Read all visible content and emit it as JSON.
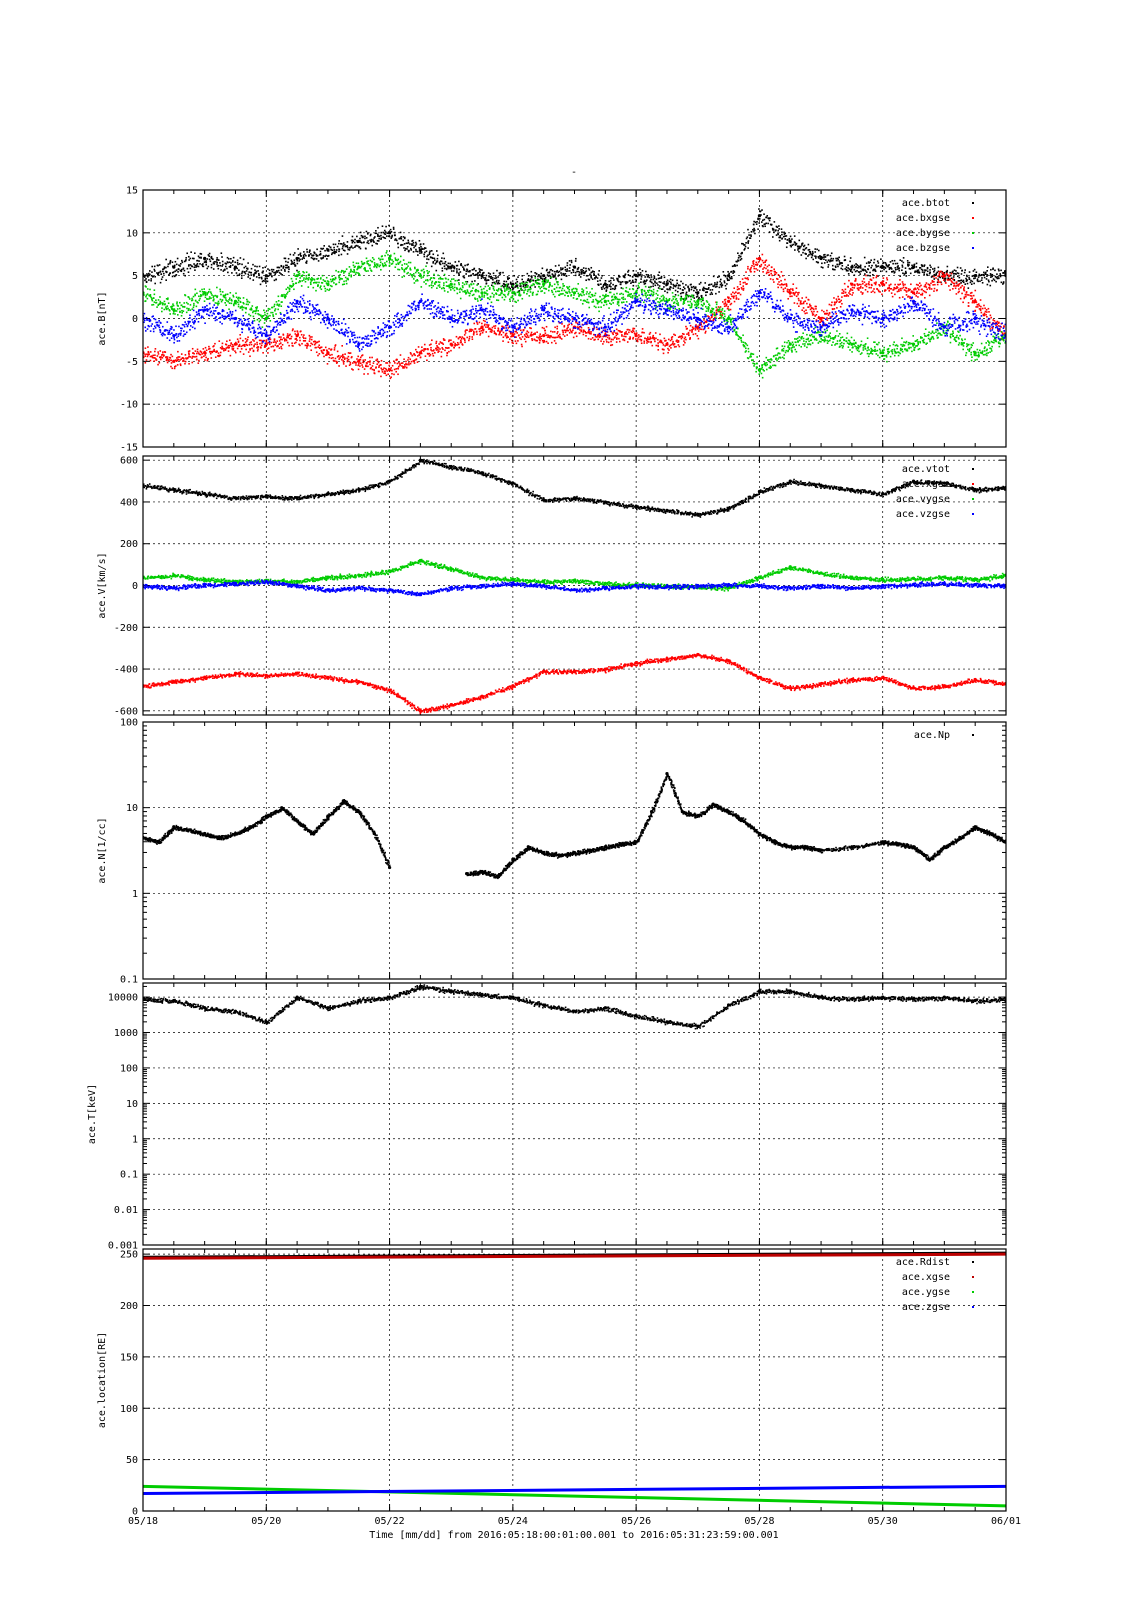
{
  "page": {
    "top_mark": "-",
    "footer": "Time [mm/dd]  from 2016:05:18:00:01:00.001  to  2016:05:31:23:59:00.001"
  },
  "chart_data": [
    {
      "type": "scatter",
      "ylabel": "ace.B[nT]",
      "yscale": "linear",
      "ylim": [
        -15,
        15
      ],
      "yticks": [
        -15,
        -10,
        -5,
        0,
        5,
        10,
        15
      ],
      "legend_position": "top-right",
      "series": [
        {
          "name": "ace.btot",
          "color": "#000000",
          "t": [
            0,
            0.5,
            1,
            1.5,
            2,
            2.5,
            3,
            3.5,
            4,
            4.5,
            5,
            5.5,
            6,
            6.5,
            7,
            7.5,
            8,
            8.5,
            9,
            9.5,
            10,
            10.5,
            11,
            11.5,
            12,
            12.5,
            13,
            13.5,
            14
          ],
          "values": [
            5,
            6,
            7,
            6,
            5,
            7,
            8,
            9,
            10,
            8,
            6,
            5,
            4,
            5,
            6,
            4,
            5,
            4,
            3,
            5,
            12,
            9,
            7,
            6,
            6,
            6,
            5,
            5,
            5
          ]
        },
        {
          "name": "ace.bxgse",
          "color": "#ff0000",
          "t": [
            0,
            0.5,
            1,
            1.5,
            2,
            2.5,
            3,
            3.5,
            4,
            4.5,
            5,
            5.5,
            6,
            6.5,
            7,
            7.5,
            8,
            8.5,
            9,
            9.5,
            10,
            10.5,
            11,
            11.5,
            12,
            12.5,
            13,
            13.5,
            14
          ],
          "values": [
            -4,
            -5,
            -4,
            -3,
            -3,
            -2,
            -4,
            -5,
            -6,
            -4,
            -3,
            -1,
            -2,
            -2,
            -1,
            -2,
            -2,
            -3,
            -1,
            2,
            7,
            3,
            0,
            4,
            4,
            3,
            5,
            2,
            -2
          ]
        },
        {
          "name": "ace.bygse",
          "color": "#00cc00",
          "t": [
            0,
            0.5,
            1,
            1.5,
            2,
            2.5,
            3,
            3.5,
            4,
            4.5,
            5,
            5.5,
            6,
            6.5,
            7,
            7.5,
            8,
            8.5,
            9,
            9.5,
            10,
            10.5,
            11,
            11.5,
            12,
            12.5,
            13,
            13.5,
            14
          ],
          "values": [
            3,
            1,
            3,
            2,
            0,
            5,
            4,
            6,
            7,
            5,
            4,
            3,
            3,
            4,
            3,
            2,
            3,
            2,
            2,
            0,
            -6,
            -3,
            -2,
            -3,
            -4,
            -3,
            -1,
            -4,
            -2
          ]
        },
        {
          "name": "ace.bzgse",
          "color": "#0000ff",
          "t": [
            0,
            0.5,
            1,
            1.5,
            2,
            2.5,
            3,
            3.5,
            4,
            4.5,
            5,
            5.5,
            6,
            6.5,
            7,
            7.5,
            8,
            8.5,
            9,
            9.5,
            10,
            10.5,
            11,
            11.5,
            12,
            12.5,
            13,
            13.5,
            14
          ],
          "values": [
            0,
            -2,
            1,
            0,
            -2,
            2,
            0,
            -3,
            -1,
            2,
            0,
            1,
            -1,
            1,
            0,
            -1,
            2,
            1,
            0,
            -1,
            3,
            0,
            -1,
            1,
            0,
            2,
            -1,
            0,
            -2
          ]
        }
      ]
    },
    {
      "type": "scatter",
      "ylabel": "ace.V[km/s]",
      "yscale": "linear",
      "ylim": [
        -620,
        620
      ],
      "yticks": [
        -600,
        -400,
        -200,
        0,
        200,
        400,
        600
      ],
      "legend_position": "top-right",
      "series": [
        {
          "name": "ace.vtot",
          "color": "#000000",
          "t": [
            0,
            0.5,
            1,
            1.5,
            2,
            2.5,
            3,
            3.5,
            4,
            4.5,
            5,
            5.5,
            6,
            6.5,
            7,
            7.5,
            8,
            8.5,
            9,
            9.5,
            10,
            10.5,
            11,
            11.5,
            12,
            12.5,
            13,
            13.5,
            14
          ],
          "values": [
            480,
            460,
            440,
            420,
            430,
            420,
            440,
            460,
            500,
            600,
            570,
            540,
            490,
            410,
            420,
            400,
            380,
            360,
            340,
            370,
            450,
            500,
            480,
            460,
            440,
            500,
            490,
            460,
            470
          ]
        },
        {
          "name": "ace.xgse",
          "color": "#ff0000",
          "t": [
            0,
            0.5,
            1,
            1.5,
            2,
            2.5,
            3,
            3.5,
            4,
            4.5,
            5,
            5.5,
            6,
            6.5,
            7,
            7.5,
            8,
            8.5,
            9,
            9.5,
            10,
            10.5,
            11,
            11.5,
            12,
            12.5,
            13,
            13.5,
            14
          ],
          "values": [
            -480,
            -460,
            -440,
            -420,
            -430,
            -420,
            -440,
            -460,
            -500,
            -600,
            -570,
            -530,
            -480,
            -410,
            -410,
            -400,
            -370,
            -350,
            -330,
            -360,
            -440,
            -490,
            -470,
            -450,
            -440,
            -490,
            -480,
            -450,
            -470
          ]
        },
        {
          "name": "ace.vygse",
          "color": "#00cc00",
          "t": [
            0,
            0.5,
            1,
            1.5,
            2,
            2.5,
            3,
            3.5,
            4,
            4.5,
            5,
            5.5,
            6,
            6.5,
            7,
            7.5,
            8,
            8.5,
            9,
            9.5,
            10,
            10.5,
            11,
            11.5,
            12,
            12.5,
            13,
            13.5,
            14
          ],
          "values": [
            40,
            50,
            30,
            20,
            25,
            20,
            40,
            50,
            70,
            120,
            80,
            40,
            30,
            20,
            25,
            10,
            5,
            0,
            -5,
            -10,
            40,
            90,
            60,
            40,
            30,
            35,
            40,
            30,
            50
          ]
        },
        {
          "name": "ace.vzgse",
          "color": "#0000ff",
          "t": [
            0,
            0.5,
            1,
            1.5,
            2,
            2.5,
            3,
            3.5,
            4,
            4.5,
            5,
            5.5,
            6,
            6.5,
            7,
            7.5,
            8,
            8.5,
            9,
            9.5,
            10,
            10.5,
            11,
            11.5,
            12,
            12.5,
            13,
            13.5,
            14
          ],
          "values": [
            0,
            -10,
            5,
            10,
            20,
            0,
            -20,
            -10,
            -20,
            -40,
            -10,
            0,
            10,
            0,
            -20,
            -10,
            0,
            -5,
            0,
            5,
            0,
            -10,
            0,
            -10,
            0,
            5,
            10,
            5,
            0
          ]
        }
      ]
    },
    {
      "type": "scatter",
      "ylabel": "ace.N[1/cc]",
      "yscale": "log",
      "ylim": [
        0.1,
        100
      ],
      "yticks": [
        0.1,
        1,
        10,
        100
      ],
      "legend_position": "top-right",
      "series": [
        {
          "name": "ace.Np",
          "color": "#000000",
          "t": [
            0,
            0.25,
            0.5,
            0.75,
            1,
            1.25,
            1.5,
            1.75,
            2,
            2.25,
            2.5,
            2.75,
            3,
            3.25,
            3.5,
            3.75,
            4,
            5.25,
            5.5,
            5.75,
            6,
            6.25,
            6.5,
            6.75,
            7,
            7.25,
            7.5,
            7.75,
            8,
            8.25,
            8.5,
            8.75,
            9,
            9.25,
            9.5,
            9.75,
            10,
            10.25,
            10.5,
            10.75,
            11,
            11.5,
            12,
            12.25,
            12.5,
            12.75,
            13,
            13.25,
            13.5,
            13.75,
            14
          ],
          "values": [
            4.5,
            4,
            6,
            5.5,
            5,
            4.5,
            5,
            6,
            8,
            10,
            7,
            5,
            8,
            12,
            9,
            5,
            2,
            1.7,
            1.8,
            1.6,
            2.5,
            3.5,
            3,
            2.8,
            3,
            3.2,
            3.5,
            3.8,
            4,
            9,
            25,
            9,
            8,
            11,
            9,
            7,
            5,
            4,
            3.5,
            3.5,
            3.2,
            3.5,
            4,
            3.8,
            3.5,
            2.5,
            3.5,
            4.5,
            6,
            5,
            4
          ]
        }
      ]
    },
    {
      "type": "scatter",
      "ylabel": "ace.T[keV]",
      "yscale": "log",
      "ylim": [
        0.001,
        25000
      ],
      "yticks": [
        0.001,
        0.01,
        0.1,
        1,
        10,
        100,
        1000,
        10000
      ],
      "yticklabels": [
        "0.001",
        "0.01",
        "0.1",
        "1",
        "10",
        "100",
        "1000",
        "10000"
      ],
      "series": [
        {
          "name": "ace.T",
          "color": "#000000",
          "t": [
            0,
            0.5,
            1,
            1.5,
            2,
            2.5,
            3,
            3.5,
            4,
            4.5,
            5,
            5.5,
            6,
            6.5,
            7,
            7.5,
            8,
            8.5,
            9,
            9.5,
            10,
            10.5,
            11,
            11.5,
            12,
            12.5,
            13,
            13.5,
            14
          ],
          "values": [
            9000,
            8000,
            5000,
            4000,
            2000,
            10000,
            5000,
            8000,
            10000,
            20000,
            15000,
            12000,
            10000,
            6000,
            4000,
            5000,
            3000,
            2000,
            1500,
            6000,
            15000,
            15000,
            10000,
            9000,
            10000,
            9000,
            10000,
            8000,
            9000
          ]
        }
      ]
    },
    {
      "type": "line",
      "ylabel": "ace.location[RE]",
      "yscale": "linear",
      "ylim": [
        0,
        255
      ],
      "yticks": [
        0,
        50,
        100,
        150,
        200,
        250
      ],
      "legend_position": "top-right",
      "series": [
        {
          "name": "ace.Rdist",
          "color": "#000000",
          "t": [
            0,
            14
          ],
          "values": [
            247,
            251
          ]
        },
        {
          "name": "ace.xgse",
          "color": "#bb0000",
          "t": [
            0,
            14
          ],
          "values": [
            246,
            250
          ]
        },
        {
          "name": "ace.ygse",
          "color": "#00cc00",
          "t": [
            0,
            14
          ],
          "values": [
            24,
            5
          ]
        },
        {
          "name": "ace.zgse",
          "color": "#0000ff",
          "t": [
            0,
            14
          ],
          "values": [
            17,
            24
          ]
        }
      ]
    }
  ],
  "x_axis": {
    "range_days": [
      0,
      14
    ],
    "tick_days": [
      0,
      2,
      4,
      6,
      8,
      10,
      12,
      14
    ],
    "tick_labels": [
      "05/18",
      "05/20",
      "05/22",
      "05/24",
      "05/26",
      "05/28",
      "05/30",
      "06/01"
    ]
  }
}
